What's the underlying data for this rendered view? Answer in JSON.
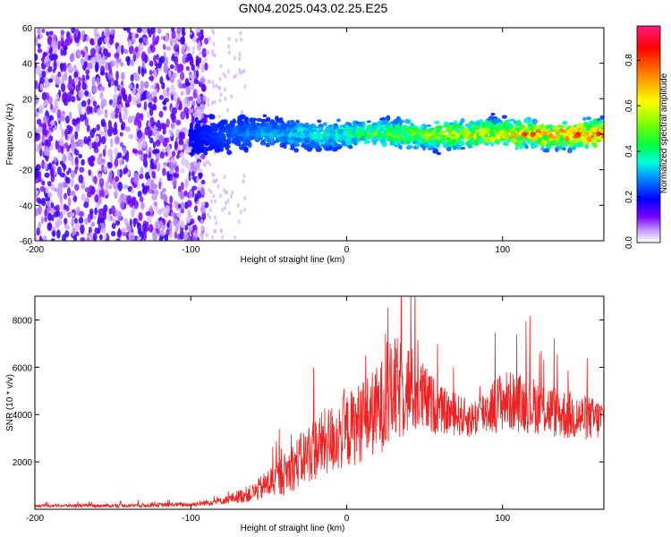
{
  "title": "GN04.2025.043.02.25.E25",
  "chart_data": [
    {
      "type": "heatmap",
      "xlabel": "Height of straight line (km)",
      "ylabel": "Frequency (Hz)",
      "xlim": [
        -200,
        165
      ],
      "ylim": [
        -60,
        60
      ],
      "xticks": [
        -200,
        -100,
        0,
        100
      ],
      "xtick_labels": [
        "-200",
        "-100",
        "0",
        "100"
      ],
      "yticks": [
        -60,
        -40,
        -20,
        0,
        20,
        40,
        60
      ],
      "ytick_labels": [
        "-60",
        "-40",
        "-20",
        "0",
        "20",
        "40",
        "60"
      ],
      "colorbar": {
        "label": "Normalized spectral amplitude",
        "range": [
          0,
          0.95
        ],
        "ticks": [
          0.0,
          0.2,
          0.4,
          0.6,
          0.8
        ],
        "tick_labels": [
          "0.0",
          "0.2",
          "0.4",
          "0.6",
          "0.8"
        ],
        "colormap": [
          "#ffffff",
          "#b388ff",
          "#7a00ff",
          "#0000ff",
          "#00c0ff",
          "#00ff60",
          "#b0ff00",
          "#ffff00",
          "#ff8000",
          "#ff0000",
          "#ff1a80"
        ]
      },
      "description_series": [
        {
          "x_range": [
            -200,
            -100
          ],
          "freq_spread": [
            -60,
            60
          ],
          "amplitude": 0.05
        },
        {
          "x_range": [
            -100,
            165
          ],
          "freq_center": 0,
          "freq_width": 10,
          "amplitude_range": [
            0.2,
            0.9
          ]
        }
      ]
    },
    {
      "type": "line",
      "xlabel": "Height of straight line (km)",
      "ylabel": "SNR (10 * v/v)",
      "xlim": [
        -200,
        165
      ],
      "ylim": [
        0,
        9000
      ],
      "xticks": [
        -200,
        -100,
        0,
        100
      ],
      "xtick_labels": [
        "-200",
        "-100",
        "0",
        "100"
      ],
      "yticks": [
        2000,
        4000,
        6000,
        8000
      ],
      "ytick_labels": [
        "2000",
        "4000",
        "6000",
        "8000"
      ],
      "color": "#ee2222",
      "series": [
        {
          "x": [
            -200,
            -150,
            -100,
            -80,
            -60,
            -40,
            -20,
            0,
            20,
            30,
            40,
            60,
            80,
            100,
            120,
            140,
            160,
            165
          ],
          "values": [
            150,
            150,
            200,
            350,
            700,
            1500,
            2600,
            3300,
            4200,
            5000,
            5100,
            4200,
            3800,
            4600,
            4400,
            4000,
            3800,
            3800
          ],
          "spread": [
            60,
            80,
            100,
            150,
            400,
            900,
            1400,
            1600,
            1900,
            2300,
            2000,
            1000,
            800,
            1300,
            1200,
            1100,
            900,
            900
          ]
        }
      ]
    }
  ]
}
